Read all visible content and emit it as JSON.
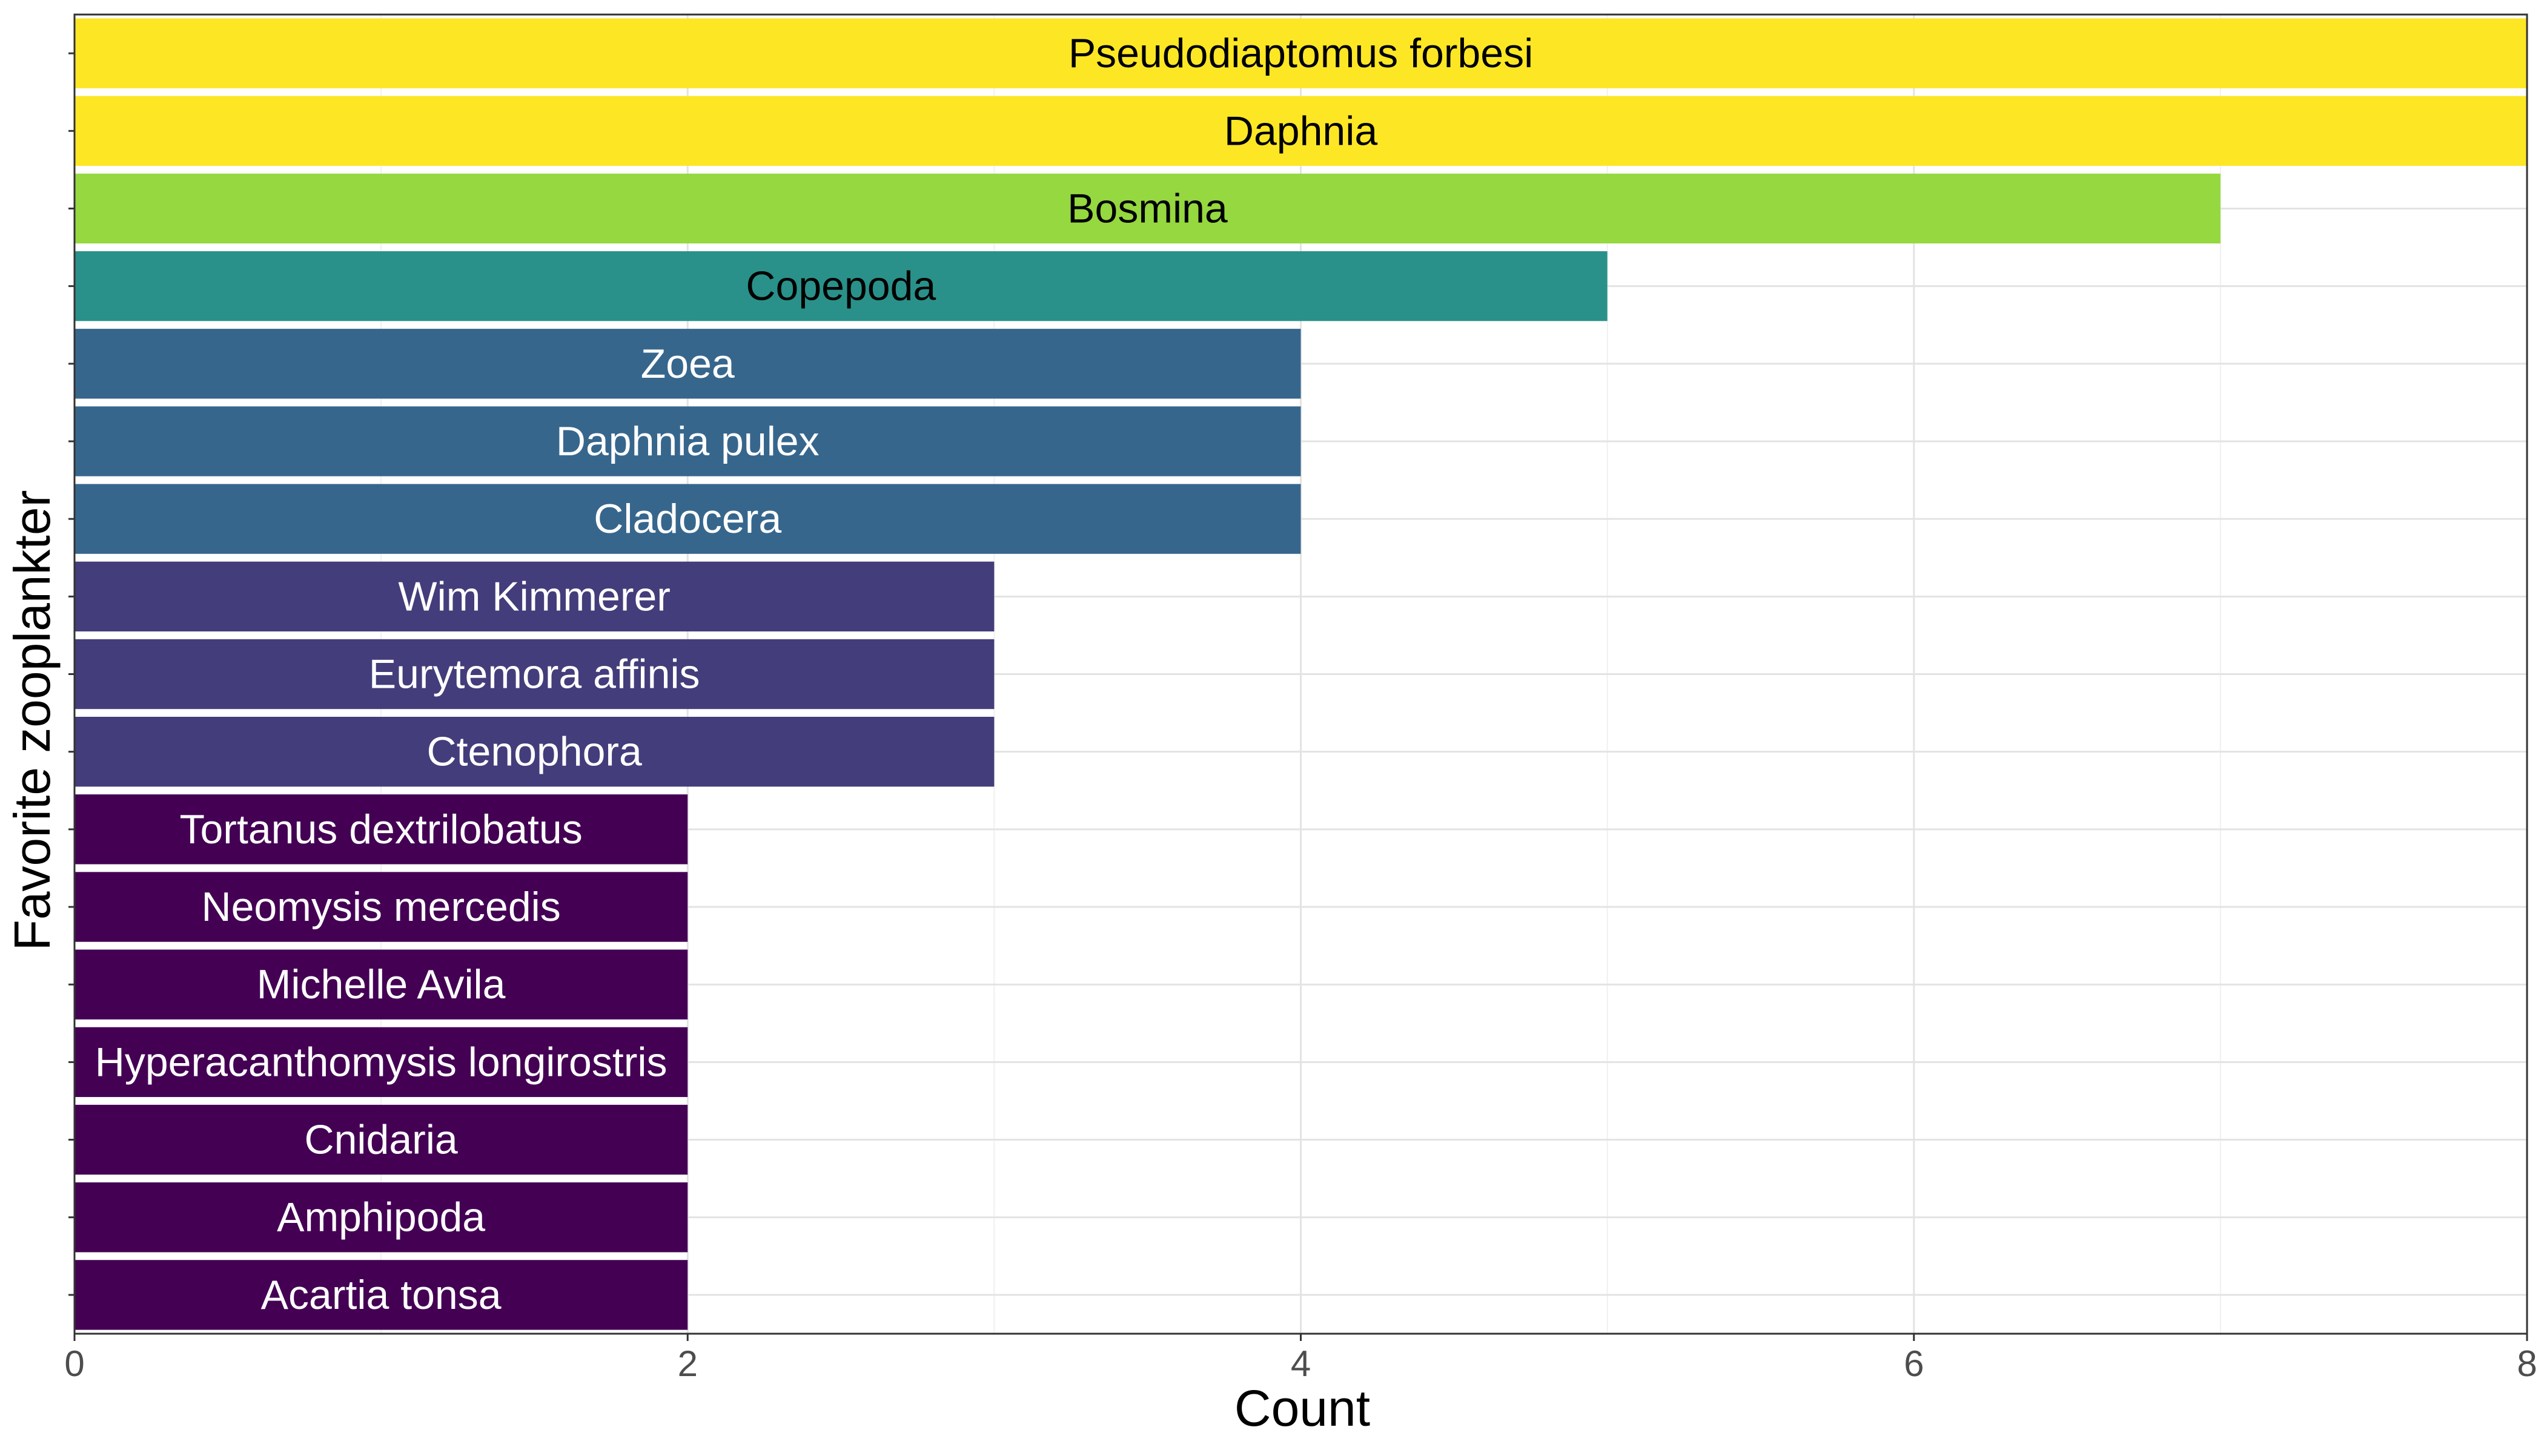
{
  "chart_data": {
    "type": "bar",
    "orientation": "horizontal",
    "title": "",
    "xlabel": "Count",
    "ylabel": "Favorite zooplankter",
    "xlim": [
      0,
      8
    ],
    "xticks": [
      0,
      2,
      4,
      6,
      8
    ],
    "grid": true,
    "legend": "none",
    "categories": [
      "Pseudodiaptomus forbesi",
      "Daphnia",
      "Bosmina",
      "Copepoda",
      "Zoea",
      "Daphnia pulex",
      "Cladocera",
      "Wim Kimmerer",
      "Eurytemora affinis",
      "Ctenophora",
      "Tortanus dextrilobatus",
      "Neomysis mercedis",
      "Michelle Avila",
      "Hyperacanthomysis longirostris",
      "Cnidaria",
      "Amphipoda",
      "Acartia tonsa"
    ],
    "values": [
      8,
      8,
      7,
      5,
      4,
      4,
      4,
      3,
      3,
      3,
      2,
      2,
      2,
      2,
      2,
      2,
      2
    ],
    "colors": {
      "8": "#fde725",
      "7": "#95d840",
      "5": "#29918a",
      "4": "#37668d",
      "3": "#433d7b",
      "2": "#440154"
    },
    "label_colors": {
      "8": "#000000",
      "7": "#000000",
      "5": "#000000",
      "4": "#ffffff",
      "3": "#ffffff",
      "2": "#ffffff"
    }
  }
}
